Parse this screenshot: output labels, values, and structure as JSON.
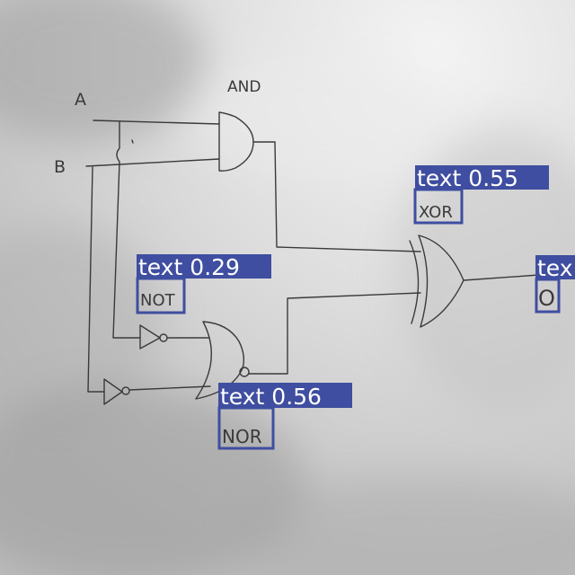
{
  "diagram": {
    "labels": {
      "input_a": "A",
      "input_b": "B",
      "and_gate": "AND",
      "xor_gate": "XOR",
      "not_gate": "NOT",
      "nor_gate": "NOR",
      "output": "O"
    },
    "detections": [
      {
        "label": "text 0.55"
      },
      {
        "label": "text 0.29"
      },
      {
        "label": "text 0.56"
      },
      {
        "label": "tex"
      }
    ],
    "colors": {
      "detection_box": "#3f4ea0",
      "detection_text": "#ffffff",
      "ink": "#3a3a3a"
    }
  }
}
